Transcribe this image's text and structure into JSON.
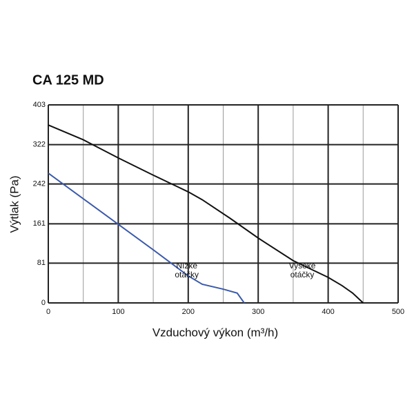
{
  "chart_data": {
    "type": "line",
    "title": "CA 125 MD",
    "xlabel": "Vzduchový výkon (m³/h)",
    "ylabel": "Výtlak (Pa)",
    "xlim": [
      0,
      500
    ],
    "ylim": [
      0,
      403
    ],
    "xticks": [
      0,
      100,
      200,
      300,
      400,
      500
    ],
    "xminorticks": [
      50,
      150,
      250,
      350,
      450
    ],
    "yticks": [
      0,
      81,
      161,
      242,
      322,
      403
    ],
    "grid": true,
    "series": [
      {
        "label": [
          "Vysoké",
          "otáčky"
        ],
        "color": "#111111",
        "x": [
          0,
          50,
          100,
          150,
          200,
          220,
          260,
          300,
          350,
          400,
          420,
          435,
          450
        ],
        "values": [
          362,
          332,
          295,
          260,
          226,
          210,
          172,
          132,
          86,
          52,
          35,
          20,
          0
        ]
      },
      {
        "label": [
          "Nízke",
          "otáčky"
        ],
        "color": "#3c5aa8",
        "x": [
          0,
          50,
          100,
          150,
          200,
          220,
          250,
          270,
          280
        ],
        "values": [
          264,
          212,
          160,
          108,
          55,
          38,
          28,
          20,
          0
        ]
      }
    ]
  }
}
